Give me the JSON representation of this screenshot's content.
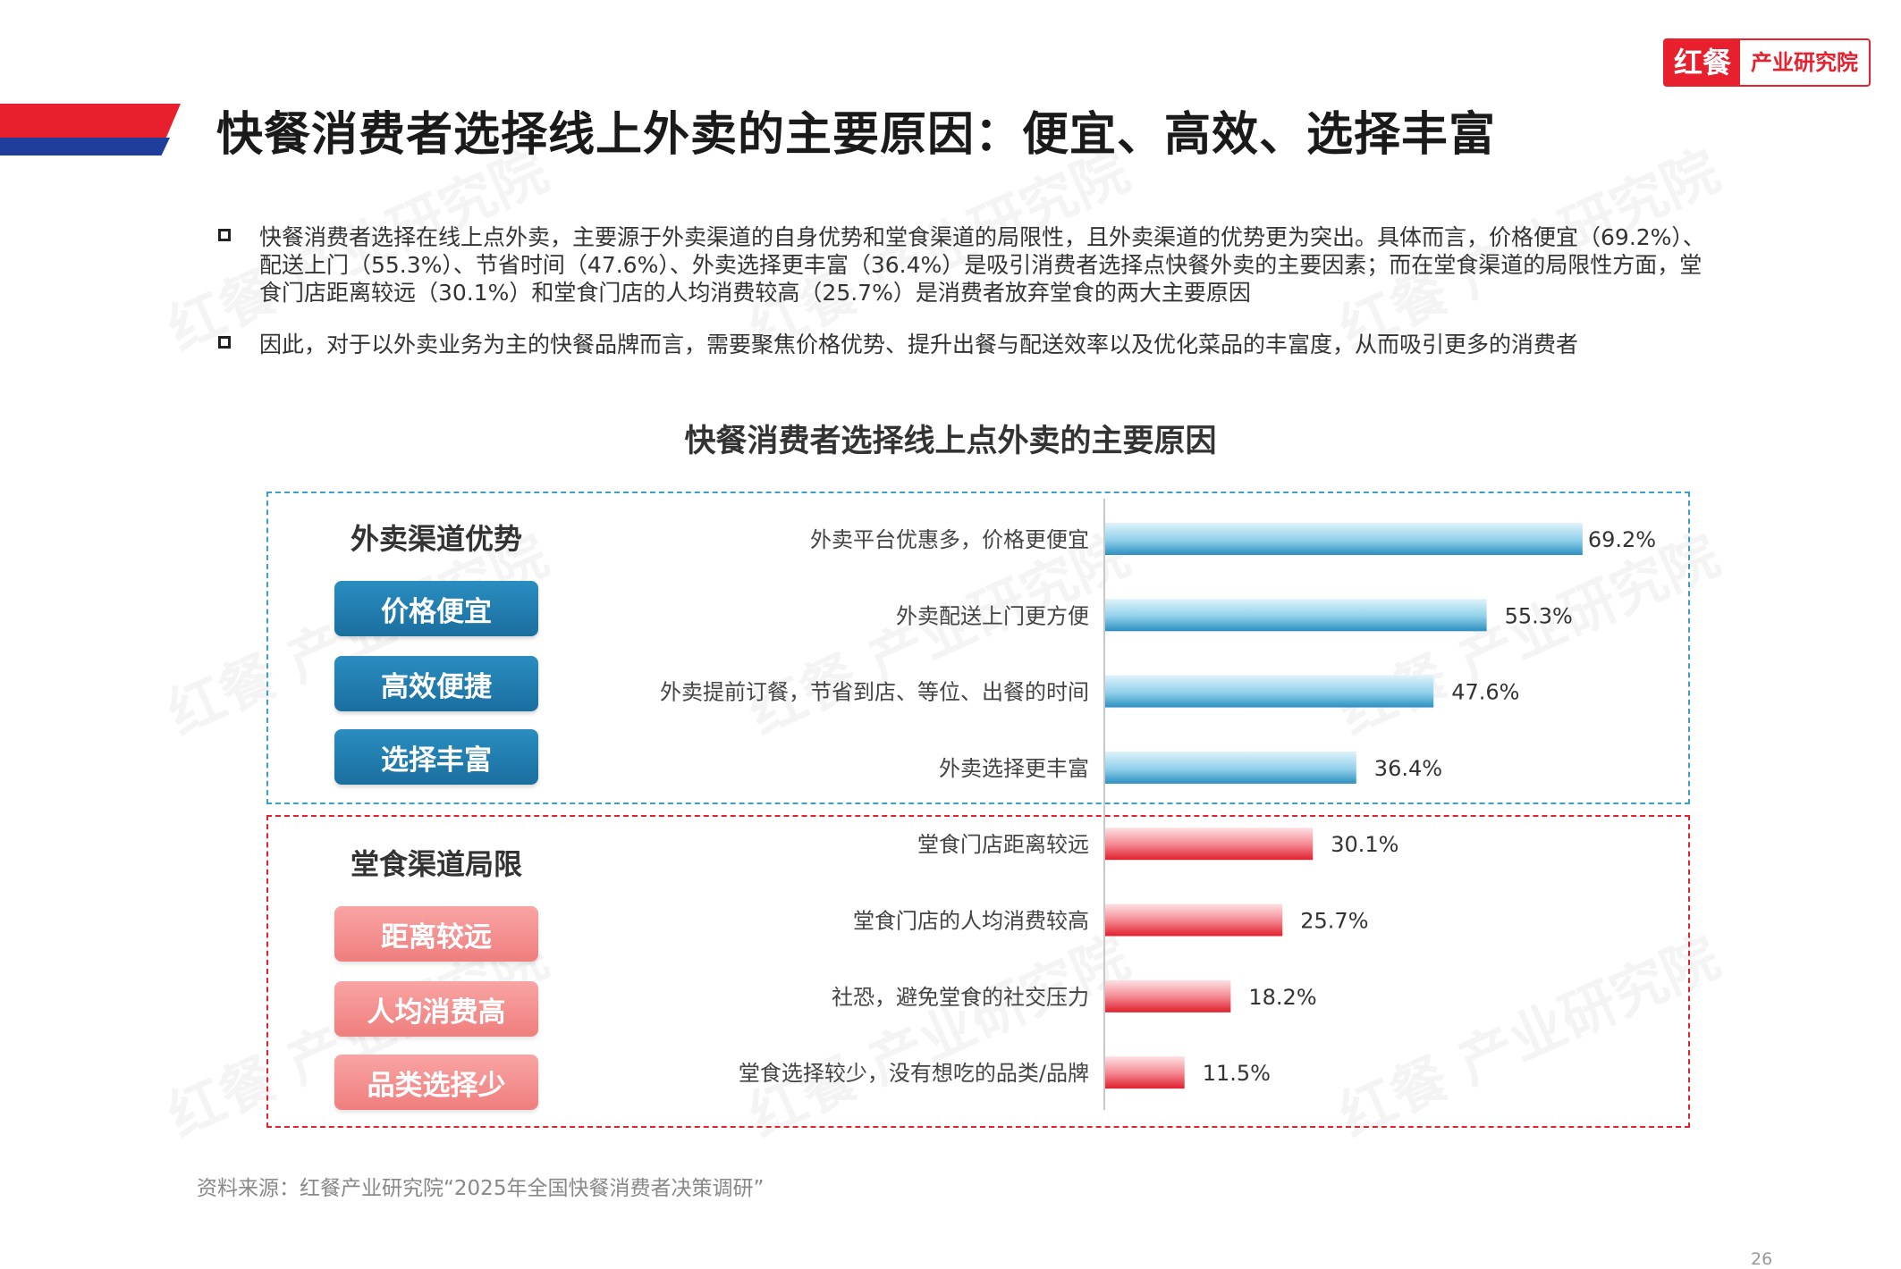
{
  "title": "快餐消费者选择线上外卖的主要原因：便宜、高效、选择丰富",
  "logo": {
    "mark": "红餐",
    "name": "产业研究院"
  },
  "bullets": [
    "快餐消费者选择在线上点外卖，主要源于外卖渠道的自身优势和堂食渠道的局限性，且外卖渠道的优势更为突出。具体而言，价格便宜（69.2%）、配送上门（55.3%）、节省时间（47.6%）、外卖选择更丰富（36.4%）是吸引消费者选择点快餐外卖的主要因素；而在堂食渠道的局限性方面，堂食门店距离较远（30.1%）和堂食门店的人均消费较高（25.7%）是消费者放弃堂食的两大主要原因",
    "因此，对于以外卖业务为主的快餐品牌而言，需要聚焦价格优势、提升出餐与配送效率以及优化菜品的丰富度，从而吸引更多的消费者"
  ],
  "groups": [
    {
      "title": "外卖渠道优势",
      "tags": [
        "价格便宜",
        "高效便捷",
        "选择丰富"
      ],
      "color": "#3ba0c9"
    },
    {
      "title": "堂食渠道局限",
      "tags": [
        "距离较远",
        "人均消费高",
        "品类选择少"
      ],
      "color": "#e8202e"
    }
  ],
  "chart_data": {
    "type": "bar",
    "orientation": "horizontal",
    "title": "快餐消费者选择线上点外卖的主要原因",
    "categories": [
      "外卖平台优惠多，价格更便宜",
      "外卖配送上门更方便",
      "外卖提前订餐，节省到店、等位、出餐的时间",
      "外卖选择更丰富",
      "堂食门店距离较远",
      "堂食门店的人均消费较高",
      "社恐，避免堂食的社交压力",
      "堂食选择较少，没有想吃的品类/品牌"
    ],
    "values": [
      69.2,
      55.3,
      47.6,
      36.4,
      30.1,
      25.7,
      18.2,
      11.5
    ],
    "value_labels": [
      "69.2%",
      "55.3%",
      "47.6%",
      "36.4%",
      "30.1%",
      "25.7%",
      "18.2%",
      "11.5%"
    ],
    "group_index": [
      0,
      0,
      0,
      0,
      1,
      1,
      1,
      1
    ],
    "unit": "%",
    "xlim": [
      0,
      70
    ]
  },
  "source": "资料来源：红餐产业研究院“2025年全国快餐消费者决策调研”",
  "page_number": "26"
}
